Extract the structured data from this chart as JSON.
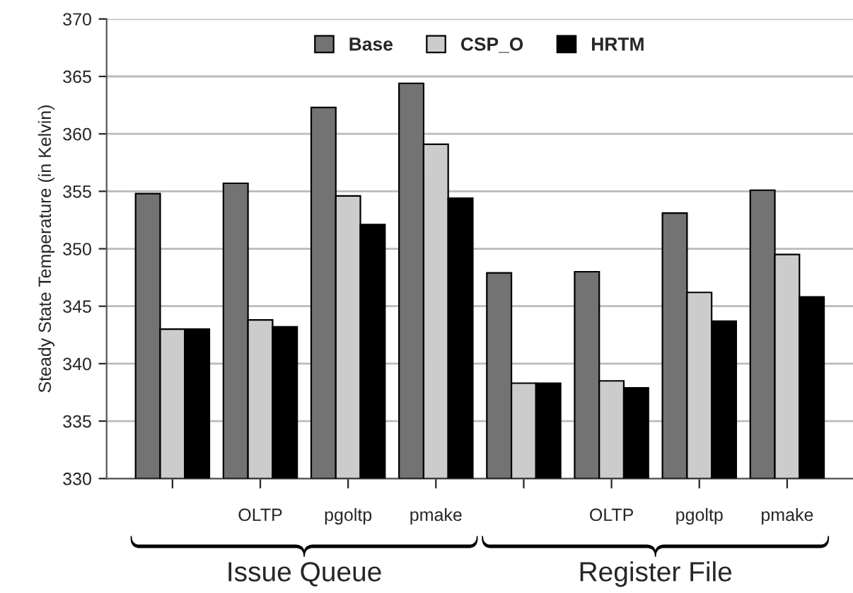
{
  "chart_data": {
    "type": "bar",
    "ylabel": "Steady State Temperature (in Kelvin)",
    "categories": [
      null,
      "OLTP",
      "pgoltp",
      "pmake",
      null,
      "OLTP",
      "pgoltp",
      "pmake"
    ],
    "series": [
      {
        "name": "Base",
        "color": "#737373",
        "values": [
          354.8,
          355.7,
          362.3,
          364.4,
          347.9,
          348.0,
          353.1,
          355.1
        ]
      },
      {
        "name": "CSP_O",
        "color": "#cccccc",
        "values": [
          343.0,
          343.8,
          354.6,
          359.1,
          338.3,
          338.5,
          346.2,
          349.5
        ]
      },
      {
        "name": "HRTM",
        "color": "#000000",
        "values": [
          343.0,
          343.2,
          352.1,
          354.4,
          338.3,
          337.9,
          343.7,
          345.8
        ]
      }
    ],
    "ylim": [
      330,
      370
    ],
    "yticks": [
      330,
      335,
      340,
      345,
      350,
      355,
      360,
      365,
      370
    ],
    "grid": "y",
    "legend": "top",
    "annotations": [
      "Issue Queue",
      "Register File"
    ]
  }
}
